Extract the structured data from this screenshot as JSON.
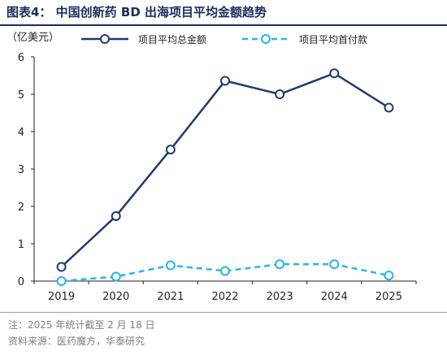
{
  "figure_title": "图表4：  中国创新药 BD 出海项目平均金额趋势",
  "notes": [
    "注：2025 年统计截至 2 月 18 日",
    "资料来源：医药魔方，华泰研究"
  ],
  "colors": {
    "title": "#1a2d5c",
    "series_total": "#1f3a6e",
    "series_upfront": "#29b6e6"
  },
  "chart_data": {
    "type": "line",
    "unit_label": "（亿美元）",
    "categories": [
      "2019",
      "2020",
      "2021",
      "2022",
      "2023",
      "2024",
      "2025"
    ],
    "ylim": [
      0,
      6
    ],
    "yticks": [
      "0",
      "1",
      "2",
      "3",
      "4",
      "5",
      "6"
    ],
    "grid": false,
    "legend_position": "top",
    "series": [
      {
        "name": "项目平均总金额",
        "style": "solid",
        "marker": "hollow-circle",
        "values": [
          0.38,
          1.74,
          3.52,
          5.36,
          5.0,
          5.56,
          4.64
        ]
      },
      {
        "name": "项目平均首付款",
        "style": "dashed",
        "marker": "hollow-circle",
        "values": [
          0.0,
          0.12,
          0.42,
          0.27,
          0.45,
          0.45,
          0.15
        ]
      }
    ]
  }
}
